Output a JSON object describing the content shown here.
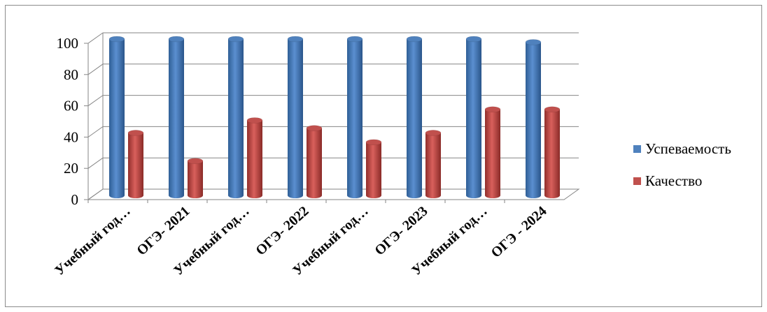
{
  "chart_data": {
    "type": "bar",
    "categories": [
      "Учебный год…",
      "ОГЭ- 2021",
      "Учебный год…",
      "ОГЭ- 2022",
      "Учебный год…",
      "ОГЭ- 2023",
      "Учебный год…",
      "ОГЭ - 2024"
    ],
    "series": [
      {
        "name": "Успеваемость",
        "color": "#4f81bd",
        "values": [
          100,
          100,
          100,
          100,
          100,
          100,
          100,
          98
        ]
      },
      {
        "name": "Качество",
        "color": "#c0504d",
        "values": [
          40,
          22,
          48,
          43,
          34,
          40,
          55,
          55
        ]
      }
    ],
    "yticks": [
      "100",
      "80",
      "60",
      "40",
      "20",
      "0"
    ],
    "ylim": [
      0,
      100
    ],
    "grid": true,
    "legend_position": "right"
  }
}
